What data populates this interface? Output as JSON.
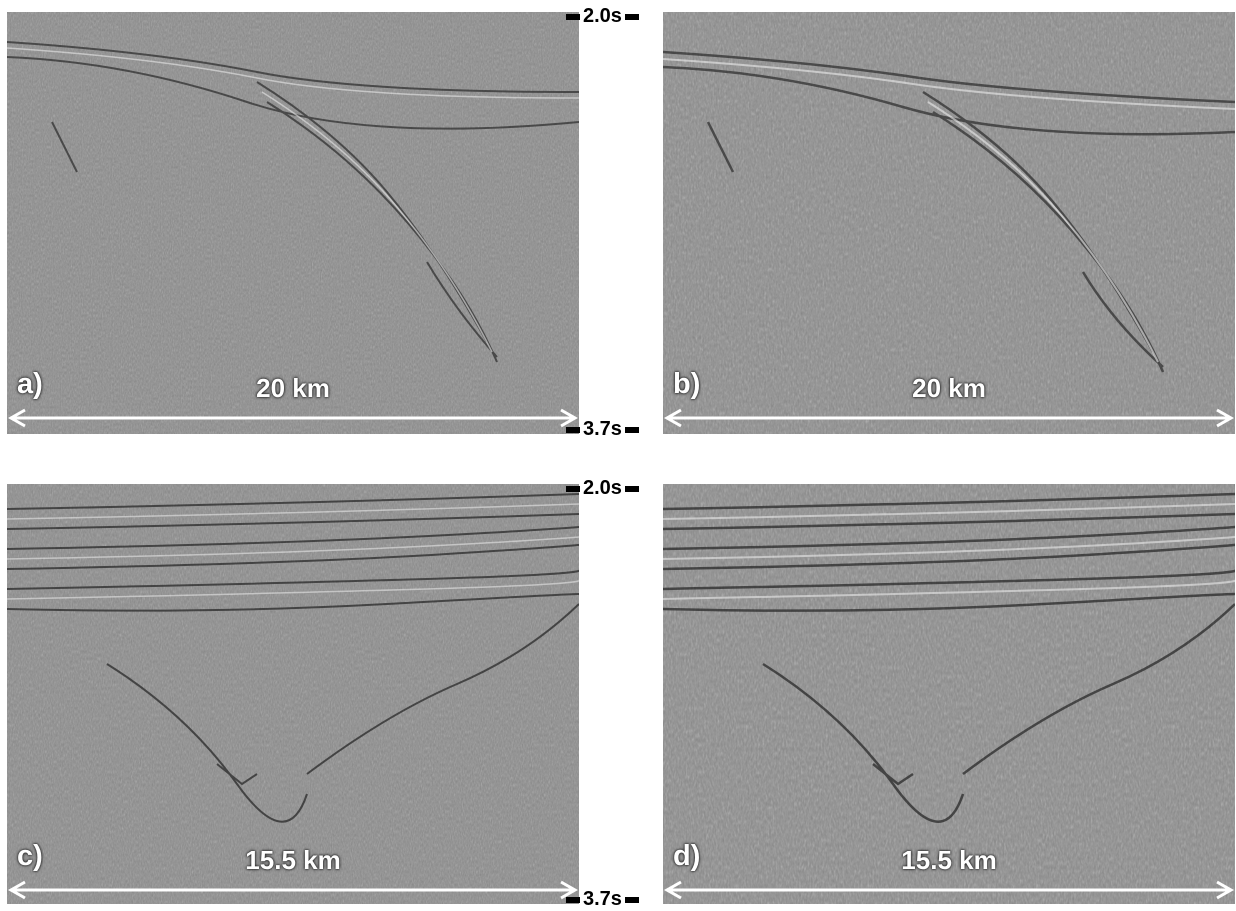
{
  "panels": [
    {
      "label": "a)",
      "scale_text": "20 km"
    },
    {
      "label": "b)",
      "scale_text": "20 km"
    },
    {
      "label": "c)",
      "scale_text": "15.5 km"
    },
    {
      "label": "d)",
      "scale_text": "15.5 km"
    }
  ],
  "time_axis": {
    "top": {
      "start": "2.0s",
      "end": "3.7s"
    },
    "bottom": {
      "start": "2.0s",
      "end": "3.7s"
    }
  },
  "colors": {
    "background": "#ffffff",
    "seismic_gray": "#8a8a8a",
    "annotation": "#ffffff",
    "tick": "#000000"
  }
}
